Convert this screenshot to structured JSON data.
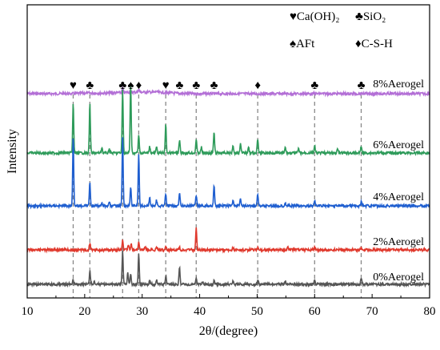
{
  "chart_data": {
    "type": "line",
    "xlabel": "2θ/(degree)",
    "ylabel": "Intensity",
    "xlim": [
      10,
      80
    ],
    "x_ticks": [
      10,
      20,
      30,
      40,
      50,
      60,
      70,
      80
    ],
    "y_ticks_shown": false,
    "grid": false,
    "legend": {
      "position": "top-right",
      "entries": [
        {
          "symbol": "♥",
          "label": "Ca(OH)₂"
        },
        {
          "symbol": "♣",
          "label": "SiO₂"
        },
        {
          "symbol": "♠",
          "label": "AFt"
        },
        {
          "symbol": "♦",
          "label": "C-S-H"
        }
      ]
    },
    "series": [
      {
        "name": "8%Aerogel",
        "color": "#b36fd6",
        "baseline": 0.73,
        "peaks": [
          [
            26.6,
            0.2
          ],
          [
            29.4,
            0.12
          ],
          [
            32.5,
            0.04
          ]
        ],
        "hump": [
          [
            20.5,
            0.02
          ],
          [
            28.5,
            0.06,
            5
          ],
          [
            33,
            0.03,
            3
          ]
        ]
      },
      {
        "name": "6%Aerogel",
        "color": "#2e9b5a",
        "baseline": 0.0,
        "peaks": [
          [
            18.0,
            0.7
          ],
          [
            20.9,
            0.7
          ],
          [
            23.0,
            0.08
          ],
          [
            24.3,
            0.06
          ],
          [
            26.6,
            0.9
          ],
          [
            28.0,
            1.0
          ],
          [
            29.4,
            0.25
          ],
          [
            31.3,
            0.1
          ],
          [
            32.5,
            0.08
          ],
          [
            34.1,
            0.4
          ],
          [
            36.5,
            0.18
          ],
          [
            39.4,
            0.2
          ],
          [
            40.3,
            0.08
          ],
          [
            42.5,
            0.3
          ],
          [
            45.8,
            0.12
          ],
          [
            47.1,
            0.15
          ],
          [
            48.5,
            0.1
          ],
          [
            50.1,
            0.2
          ],
          [
            54.9,
            0.08
          ],
          [
            57.2,
            0.06
          ],
          [
            60.0,
            0.1
          ],
          [
            64.0,
            0.06
          ],
          [
            68.1,
            0.1
          ]
        ]
      },
      {
        "name": "4%Aerogel",
        "color": "#1f5fd0",
        "baseline": 0.0,
        "peaks": [
          [
            18.0,
            1.0
          ],
          [
            20.9,
            0.35
          ],
          [
            23.0,
            0.05
          ],
          [
            24.3,
            0.06
          ],
          [
            26.6,
            1.0
          ],
          [
            28.0,
            0.28
          ],
          [
            29.4,
            0.75
          ],
          [
            31.3,
            0.12
          ],
          [
            32.5,
            0.08
          ],
          [
            34.1,
            0.18
          ],
          [
            36.5,
            0.18
          ],
          [
            39.4,
            0.15
          ],
          [
            42.5,
            0.3
          ],
          [
            45.8,
            0.08
          ],
          [
            47.1,
            0.12
          ],
          [
            50.1,
            0.18
          ],
          [
            54.9,
            0.05
          ],
          [
            60.0,
            0.07
          ],
          [
            68.1,
            0.06
          ]
        ]
      },
      {
        "name": "2%Aerogel",
        "color": "#e0392d",
        "baseline": 0.0,
        "peaks": [
          [
            20.9,
            0.15
          ],
          [
            26.6,
            0.22
          ],
          [
            27.6,
            0.12
          ],
          [
            28.1,
            0.14
          ],
          [
            29.4,
            0.15
          ],
          [
            30.5,
            0.06
          ],
          [
            32.5,
            0.05
          ],
          [
            34.1,
            0.08
          ],
          [
            36.5,
            0.05
          ],
          [
            39.4,
            0.45
          ],
          [
            45.8,
            0.05
          ],
          [
            50.1,
            0.05
          ],
          [
            55.3,
            0.06
          ],
          [
            60.0,
            0.05
          ],
          [
            68.1,
            0.05
          ]
        ]
      },
      {
        "name": "0%Aerogel",
        "color": "#555555",
        "baseline": 0.0,
        "peaks": [
          [
            18.0,
            0.08
          ],
          [
            20.9,
            0.25
          ],
          [
            21.7,
            0.06
          ],
          [
            26.6,
            0.6
          ],
          [
            27.5,
            0.2
          ],
          [
            28.0,
            0.18
          ],
          [
            29.4,
            0.55
          ],
          [
            31.3,
            0.06
          ],
          [
            32.5,
            0.08
          ],
          [
            34.1,
            0.15
          ],
          [
            36.5,
            0.3
          ],
          [
            39.4,
            0.1
          ],
          [
            40.5,
            0.05
          ],
          [
            42.5,
            0.06
          ],
          [
            45.8,
            0.05
          ],
          [
            50.1,
            0.08
          ],
          [
            54.9,
            0.05
          ],
          [
            60.0,
            0.06
          ],
          [
            68.1,
            0.12
          ]
        ]
      }
    ],
    "reference_lines_x": [
      18.0,
      20.9,
      26.6,
      29.4,
      34.1,
      39.4,
      50.1,
      60.0,
      68.1
    ],
    "markers": [
      {
        "symbol": "♥",
        "x": 18.0
      },
      {
        "symbol": "♣",
        "x": 20.9
      },
      {
        "symbol": "♣",
        "x": 26.6
      },
      {
        "symbol": "♠",
        "x": 28.0
      },
      {
        "symbol": "♦",
        "x": 29.4
      },
      {
        "symbol": "♥",
        "x": 34.1
      },
      {
        "symbol": "♣",
        "x": 36.5
      },
      {
        "symbol": "♣",
        "x": 39.4
      },
      {
        "symbol": "♣",
        "x": 42.5
      },
      {
        "symbol": "♦",
        "x": 50.1
      },
      {
        "symbol": "♣",
        "x": 60.0
      },
      {
        "symbol": "♣",
        "x": 68.1
      }
    ]
  }
}
